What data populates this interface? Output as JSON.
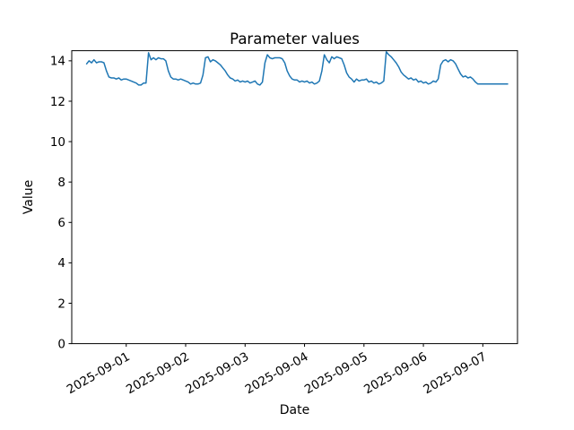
{
  "figure": {
    "background": "#ffffff",
    "text_color": "#000000"
  },
  "chart_data": {
    "type": "line",
    "title": "Parameter values",
    "xlabel": "Date",
    "ylabel": "Value",
    "grid": false,
    "legend": "none",
    "ylim": [
      0,
      14.5
    ],
    "yticks": [
      0,
      2,
      4,
      6,
      8,
      10,
      12,
      14
    ],
    "xlim": [
      "2025-08-31 02:00",
      "2025-09-07 14:00"
    ],
    "xticks": [
      "2025-09-01",
      "2025-09-02",
      "2025-09-03",
      "2025-09-04",
      "2025-09-05",
      "2025-09-06",
      "2025-09-07"
    ],
    "xtick_rotation_deg": 30,
    "series": [
      {
        "color": "#1f77b4",
        "line_width": 1.5,
        "start": "2025-08-31 08:00",
        "step_hours": 1,
        "values": [
          13.85,
          14.0,
          13.9,
          14.05,
          13.9,
          13.95,
          13.95,
          13.9,
          13.5,
          13.2,
          13.15,
          13.15,
          13.1,
          13.15,
          13.05,
          13.1,
          13.1,
          13.05,
          13.0,
          12.95,
          12.9,
          12.8,
          12.8,
          12.9,
          12.9,
          14.4,
          14.05,
          14.15,
          14.05,
          14.15,
          14.1,
          14.1,
          14.0,
          13.5,
          13.2,
          13.1,
          13.1,
          13.05,
          13.1,
          13.05,
          13.0,
          12.95,
          12.85,
          12.9,
          12.85,
          12.85,
          12.9,
          13.3,
          14.15,
          14.2,
          13.95,
          14.05,
          14.0,
          13.9,
          13.8,
          13.65,
          13.5,
          13.3,
          13.15,
          13.1,
          13.0,
          13.05,
          12.95,
          13.0,
          12.95,
          13.0,
          12.9,
          12.95,
          13.0,
          12.85,
          12.8,
          12.95,
          13.9,
          14.3,
          14.15,
          14.1,
          14.15,
          14.15,
          14.15,
          14.1,
          13.9,
          13.5,
          13.25,
          13.1,
          13.05,
          13.05,
          12.95,
          13.0,
          12.95,
          13.0,
          12.9,
          12.95,
          12.85,
          12.9,
          13.0,
          13.5,
          14.3,
          14.05,
          13.9,
          14.2,
          14.1,
          14.2,
          14.15,
          14.1,
          13.8,
          13.4,
          13.2,
          13.1,
          12.95,
          13.1,
          13.0,
          13.05,
          13.05,
          13.1,
          12.95,
          13.0,
          12.9,
          12.95,
          12.85,
          12.9,
          13.0,
          14.45,
          14.3,
          14.2,
          14.05,
          13.9,
          13.7,
          13.45,
          13.3,
          13.2,
          13.1,
          13.15,
          13.05,
          13.1,
          12.95,
          13.0,
          12.9,
          12.95,
          12.85,
          12.9,
          13.0,
          12.95,
          13.1,
          13.8,
          14.0,
          14.05,
          13.95,
          14.05,
          14.0,
          13.85,
          13.6,
          13.35,
          13.2,
          13.25,
          13.15,
          13.2,
          13.1,
          12.95,
          12.85,
          12.85,
          12.85,
          12.85,
          12.85,
          12.85,
          12.85,
          12.85,
          12.85,
          12.85,
          12.85,
          12.85,
          12.85
        ]
      }
    ]
  }
}
